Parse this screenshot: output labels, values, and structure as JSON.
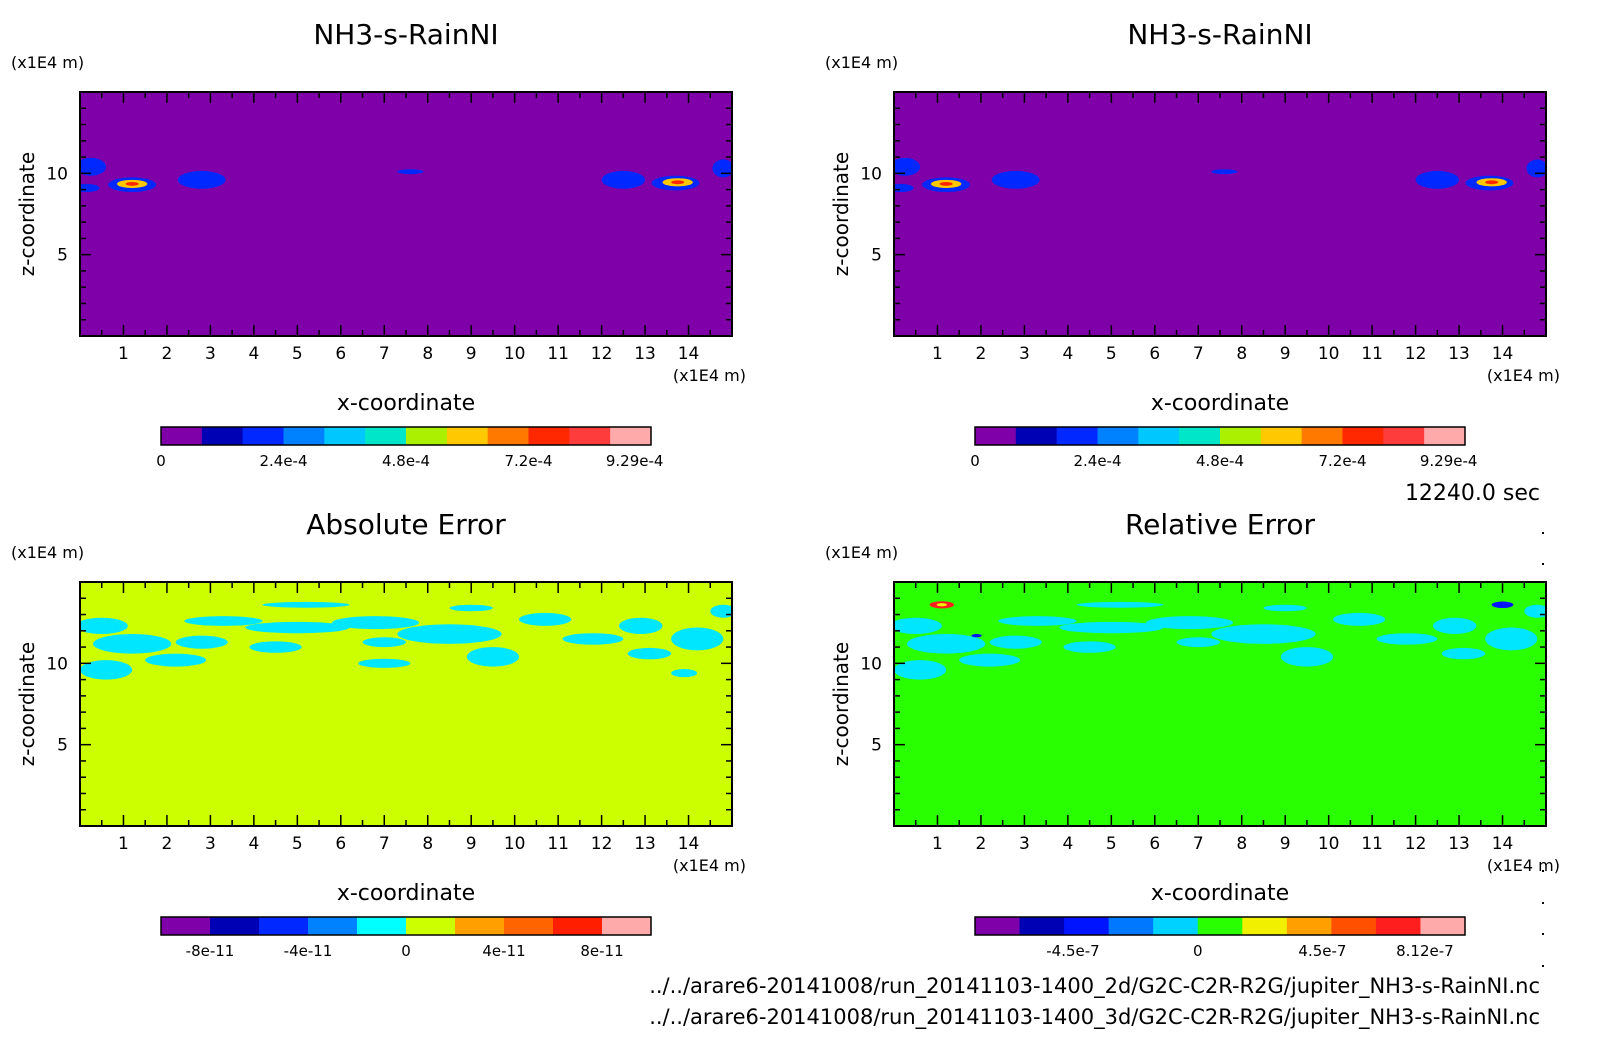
{
  "timestamp": "12240.0 sec",
  "source_files": [
    "../../arare6-20141008/run_20141103-1400_2d/G2C-C2R-R2G/jupiter_NH3-s-RainNI.nc",
    "../../arare6-20141008/run_20141103-1400_3d/G2C-C2R-R2G/jupiter_NH3-s-RainNI.nc"
  ],
  "chart_data": [
    {
      "type": "heatmap",
      "id": "panel-2d",
      "title": "NH3-s-RainNI",
      "xlabel": "x-coordinate",
      "ylabel": "z-coordinate",
      "x_unit": "(x1E4 m)",
      "y_unit": "(x1E4 m)",
      "xlim": [
        0,
        15
      ],
      "ylim": [
        0,
        15
      ],
      "xticks": [
        1,
        2,
        3,
        4,
        5,
        6,
        7,
        8,
        9,
        10,
        11,
        12,
        13,
        14
      ],
      "yticks": [
        5,
        10
      ],
      "background_color": "#7f00a8",
      "colorbar": {
        "labels": [
          "0",
          "2.4e-4",
          "4.8e-4",
          "7.2e-4",
          "9.29e-4"
        ],
        "label_positions": [
          0,
          3,
          6,
          9,
          11.6
        ],
        "colors": [
          "#7f00a8",
          "#0000b4",
          "#0028ff",
          "#0082ff",
          "#00c8ff",
          "#00e6c8",
          "#aaf000",
          "#ffc800",
          "#ff7800",
          "#ff2800",
          "#ff3c3c",
          "#ffaaaa"
        ]
      },
      "blobs": [
        {
          "x": 0.25,
          "z": 10.4,
          "rx": 0.35,
          "rz": 0.55,
          "color": "#0028ff"
        },
        {
          "x": 0.15,
          "z": 9.1,
          "rx": 0.3,
          "rz": 0.25,
          "color": "#0028ff"
        },
        {
          "x": 1.2,
          "z": 9.3,
          "rx": 0.55,
          "rz": 0.45,
          "color": "#0028ff"
        },
        {
          "x": 1.2,
          "z": 9.35,
          "rx": 0.35,
          "rz": 0.25,
          "color": "#ffc800"
        },
        {
          "x": 1.2,
          "z": 9.35,
          "rx": 0.15,
          "rz": 0.12,
          "color": "#ff2800"
        },
        {
          "x": 2.8,
          "z": 9.6,
          "rx": 0.55,
          "rz": 0.55,
          "color": "#0028ff"
        },
        {
          "x": 7.6,
          "z": 10.1,
          "rx": 0.3,
          "rz": 0.15,
          "color": "#0028ff"
        },
        {
          "x": 12.5,
          "z": 9.6,
          "rx": 0.5,
          "rz": 0.55,
          "color": "#0028ff"
        },
        {
          "x": 13.7,
          "z": 9.4,
          "rx": 0.55,
          "rz": 0.45,
          "color": "#0028ff"
        },
        {
          "x": 13.75,
          "z": 9.45,
          "rx": 0.35,
          "rz": 0.25,
          "color": "#ffc800"
        },
        {
          "x": 13.75,
          "z": 9.45,
          "rx": 0.15,
          "rz": 0.12,
          "color": "#ff2800"
        },
        {
          "x": 14.8,
          "z": 10.3,
          "rx": 0.25,
          "rz": 0.55,
          "color": "#0028ff"
        }
      ]
    },
    {
      "type": "heatmap",
      "id": "panel-3d",
      "title": "NH3-s-RainNI",
      "xlabel": "x-coordinate",
      "ylabel": "z-coordinate",
      "x_unit": "(x1E4 m)",
      "y_unit": "(x1E4 m)",
      "xlim": [
        0,
        15
      ],
      "ylim": [
        0,
        15
      ],
      "xticks": [
        1,
        2,
        3,
        4,
        5,
        6,
        7,
        8,
        9,
        10,
        11,
        12,
        13,
        14
      ],
      "yticks": [
        5,
        10
      ],
      "background_color": "#7f00a8",
      "colorbar": {
        "labels": [
          "0",
          "2.4e-4",
          "4.8e-4",
          "7.2e-4",
          "9.29e-4"
        ],
        "label_positions": [
          0,
          3,
          6,
          9,
          11.6
        ],
        "colors": [
          "#7f00a8",
          "#0000b4",
          "#0028ff",
          "#0082ff",
          "#00c8ff",
          "#00e6c8",
          "#aaf000",
          "#ffc800",
          "#ff7800",
          "#ff2800",
          "#ff3c3c",
          "#ffaaaa"
        ]
      },
      "blobs": [
        {
          "x": 0.25,
          "z": 10.4,
          "rx": 0.35,
          "rz": 0.55,
          "color": "#0028ff"
        },
        {
          "x": 0.15,
          "z": 9.1,
          "rx": 0.3,
          "rz": 0.25,
          "color": "#0028ff"
        },
        {
          "x": 1.2,
          "z": 9.3,
          "rx": 0.55,
          "rz": 0.45,
          "color": "#0028ff"
        },
        {
          "x": 1.2,
          "z": 9.35,
          "rx": 0.35,
          "rz": 0.25,
          "color": "#ffc800"
        },
        {
          "x": 1.2,
          "z": 9.35,
          "rx": 0.15,
          "rz": 0.12,
          "color": "#ff2800"
        },
        {
          "x": 2.8,
          "z": 9.6,
          "rx": 0.55,
          "rz": 0.55,
          "color": "#0028ff"
        },
        {
          "x": 7.6,
          "z": 10.1,
          "rx": 0.3,
          "rz": 0.15,
          "color": "#0028ff"
        },
        {
          "x": 12.5,
          "z": 9.6,
          "rx": 0.5,
          "rz": 0.55,
          "color": "#0028ff"
        },
        {
          "x": 13.7,
          "z": 9.4,
          "rx": 0.55,
          "rz": 0.45,
          "color": "#0028ff"
        },
        {
          "x": 13.75,
          "z": 9.45,
          "rx": 0.35,
          "rz": 0.25,
          "color": "#ffc800"
        },
        {
          "x": 13.75,
          "z": 9.45,
          "rx": 0.15,
          "rz": 0.12,
          "color": "#ff2800"
        },
        {
          "x": 14.8,
          "z": 10.3,
          "rx": 0.25,
          "rz": 0.55,
          "color": "#0028ff"
        }
      ]
    },
    {
      "type": "heatmap",
      "id": "panel-abs",
      "title": "Absolute Error",
      "xlabel": "x-coordinate",
      "ylabel": "z-coordinate",
      "x_unit": "(x1E4 m)",
      "y_unit": "(x1E4 m)",
      "xlim": [
        0,
        15
      ],
      "ylim": [
        0,
        15
      ],
      "xticks": [
        1,
        2,
        3,
        4,
        5,
        6,
        7,
        8,
        9,
        10,
        11,
        12,
        13,
        14
      ],
      "yticks": [
        5,
        10
      ],
      "background_color": "#ccff00",
      "colorbar": {
        "labels": [
          "-8e-11",
          "-4e-11",
          "0",
          "4e-11",
          "8e-11"
        ],
        "label_positions": [
          1,
          3,
          5,
          7,
          9
        ],
        "colors": [
          "#7f00a8",
          "#0000b4",
          "#0028ff",
          "#0082ff",
          "#00ffff",
          "#ccff00",
          "#ffa000",
          "#ff6400",
          "#ff1e00",
          "#ffaaaa"
        ]
      },
      "blobs": [
        {
          "x": 0.5,
          "z": 12.3,
          "rx": 0.6,
          "rz": 0.5,
          "color": "#00e6ff"
        },
        {
          "x": 1.2,
          "z": 11.2,
          "rx": 0.9,
          "rz": 0.6,
          "color": "#00e6ff"
        },
        {
          "x": 0.6,
          "z": 9.6,
          "rx": 0.6,
          "rz": 0.6,
          "color": "#00e6ff"
        },
        {
          "x": 2.2,
          "z": 10.2,
          "rx": 0.7,
          "rz": 0.4,
          "color": "#00e6ff"
        },
        {
          "x": 3.3,
          "z": 12.6,
          "rx": 0.9,
          "rz": 0.3,
          "color": "#00e6ff"
        },
        {
          "x": 2.8,
          "z": 11.3,
          "rx": 0.6,
          "rz": 0.4,
          "color": "#00e6ff"
        },
        {
          "x": 5.2,
          "z": 13.6,
          "rx": 1.0,
          "rz": 0.18,
          "color": "#00e6ff"
        },
        {
          "x": 5.0,
          "z": 12.2,
          "rx": 1.2,
          "rz": 0.35,
          "color": "#00e6ff"
        },
        {
          "x": 4.5,
          "z": 11.0,
          "rx": 0.6,
          "rz": 0.35,
          "color": "#00e6ff"
        },
        {
          "x": 6.8,
          "z": 12.5,
          "rx": 1.0,
          "rz": 0.4,
          "color": "#00e6ff"
        },
        {
          "x": 7.0,
          "z": 11.3,
          "rx": 0.5,
          "rz": 0.3,
          "color": "#00e6ff"
        },
        {
          "x": 7.0,
          "z": 10.0,
          "rx": 0.6,
          "rz": 0.28,
          "color": "#00e6ff"
        },
        {
          "x": 8.5,
          "z": 11.8,
          "rx": 1.2,
          "rz": 0.6,
          "color": "#00e6ff"
        },
        {
          "x": 9.5,
          "z": 10.4,
          "rx": 0.6,
          "rz": 0.6,
          "color": "#00e6ff"
        },
        {
          "x": 9.0,
          "z": 13.4,
          "rx": 0.5,
          "rz": 0.2,
          "color": "#00e6ff"
        },
        {
          "x": 10.7,
          "z": 12.7,
          "rx": 0.6,
          "rz": 0.4,
          "color": "#00e6ff"
        },
        {
          "x": 11.8,
          "z": 11.5,
          "rx": 0.7,
          "rz": 0.35,
          "color": "#00e6ff"
        },
        {
          "x": 12.9,
          "z": 12.3,
          "rx": 0.5,
          "rz": 0.5,
          "color": "#00e6ff"
        },
        {
          "x": 13.1,
          "z": 10.6,
          "rx": 0.5,
          "rz": 0.35,
          "color": "#00e6ff"
        },
        {
          "x": 14.2,
          "z": 11.5,
          "rx": 0.6,
          "rz": 0.7,
          "color": "#00e6ff"
        },
        {
          "x": 13.9,
          "z": 9.4,
          "rx": 0.3,
          "rz": 0.25,
          "color": "#00e6ff"
        },
        {
          "x": 14.8,
          "z": 13.2,
          "rx": 0.3,
          "rz": 0.4,
          "color": "#00e6ff"
        }
      ]
    },
    {
      "type": "heatmap",
      "id": "panel-rel",
      "title": "Relative Error",
      "xlabel": "x-coordinate",
      "ylabel": "z-coordinate",
      "x_unit": "(x1E4 m)",
      "y_unit": "(x1E4 m)",
      "xlim": [
        0,
        15
      ],
      "ylim": [
        0,
        15
      ],
      "xticks": [
        1,
        2,
        3,
        4,
        5,
        6,
        7,
        8,
        9,
        10,
        11,
        12,
        13,
        14
      ],
      "yticks": [
        5,
        10
      ],
      "background_color": "#2aff00",
      "colorbar": {
        "labels": [
          "-4.5e-7",
          "0",
          "4.5e-7",
          "8.12e-7"
        ],
        "label_positions": [
          2.2,
          5.0,
          7.8,
          10.1
        ],
        "colors": [
          "#7f00a8",
          "#0000b4",
          "#0014ff",
          "#0078ff",
          "#00d2ff",
          "#2aff00",
          "#f0f000",
          "#ffa000",
          "#ff5000",
          "#ff1e1e",
          "#ffaaaa"
        ]
      },
      "blobs": [
        {
          "x": 0.5,
          "z": 12.3,
          "rx": 0.6,
          "rz": 0.5,
          "color": "#00e6ff"
        },
        {
          "x": 1.2,
          "z": 11.2,
          "rx": 0.9,
          "rz": 0.6,
          "color": "#00e6ff"
        },
        {
          "x": 0.6,
          "z": 9.6,
          "rx": 0.6,
          "rz": 0.6,
          "color": "#00e6ff"
        },
        {
          "x": 2.2,
          "z": 10.2,
          "rx": 0.7,
          "rz": 0.4,
          "color": "#00e6ff"
        },
        {
          "x": 3.3,
          "z": 12.6,
          "rx": 0.9,
          "rz": 0.3,
          "color": "#00e6ff"
        },
        {
          "x": 2.8,
          "z": 11.3,
          "rx": 0.6,
          "rz": 0.4,
          "color": "#00e6ff"
        },
        {
          "x": 5.2,
          "z": 13.6,
          "rx": 1.0,
          "rz": 0.18,
          "color": "#00e6ff"
        },
        {
          "x": 5.0,
          "z": 12.2,
          "rx": 1.2,
          "rz": 0.35,
          "color": "#00e6ff"
        },
        {
          "x": 4.5,
          "z": 11.0,
          "rx": 0.6,
          "rz": 0.35,
          "color": "#00e6ff"
        },
        {
          "x": 6.8,
          "z": 12.5,
          "rx": 1.0,
          "rz": 0.4,
          "color": "#00e6ff"
        },
        {
          "x": 7.0,
          "z": 11.3,
          "rx": 0.5,
          "rz": 0.3,
          "color": "#00e6ff"
        },
        {
          "x": 8.5,
          "z": 11.8,
          "rx": 1.2,
          "rz": 0.6,
          "color": "#00e6ff"
        },
        {
          "x": 9.5,
          "z": 10.4,
          "rx": 0.6,
          "rz": 0.6,
          "color": "#00e6ff"
        },
        {
          "x": 9.0,
          "z": 13.4,
          "rx": 0.5,
          "rz": 0.2,
          "color": "#00e6ff"
        },
        {
          "x": 10.7,
          "z": 12.7,
          "rx": 0.6,
          "rz": 0.4,
          "color": "#00e6ff"
        },
        {
          "x": 11.8,
          "z": 11.5,
          "rx": 0.7,
          "rz": 0.35,
          "color": "#00e6ff"
        },
        {
          "x": 12.9,
          "z": 12.3,
          "rx": 0.5,
          "rz": 0.5,
          "color": "#00e6ff"
        },
        {
          "x": 13.1,
          "z": 10.6,
          "rx": 0.5,
          "rz": 0.35,
          "color": "#00e6ff"
        },
        {
          "x": 14.2,
          "z": 11.5,
          "rx": 0.6,
          "rz": 0.7,
          "color": "#00e6ff"
        },
        {
          "x": 14.8,
          "z": 13.2,
          "rx": 0.3,
          "rz": 0.4,
          "color": "#00e6ff"
        },
        {
          "x": 1.1,
          "z": 13.6,
          "rx": 0.28,
          "rz": 0.22,
          "color": "#ff1e1e"
        },
        {
          "x": 1.1,
          "z": 13.6,
          "rx": 0.12,
          "rz": 0.1,
          "color": "#f0f000"
        },
        {
          "x": 1.9,
          "z": 11.7,
          "rx": 0.12,
          "rz": 0.1,
          "color": "#0014ff"
        },
        {
          "x": 14.0,
          "z": 13.6,
          "rx": 0.25,
          "rz": 0.2,
          "color": "#0014ff"
        }
      ]
    }
  ]
}
